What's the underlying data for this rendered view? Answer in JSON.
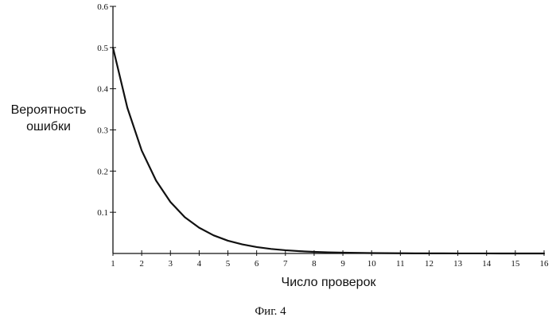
{
  "chart_data": {
    "type": "line",
    "title": "",
    "ylabel_line1": "Вероятность",
    "ylabel_line2": "ошибки",
    "xlabel": "Число проверок",
    "caption": "Фиг. 4",
    "xlim": [
      1,
      16
    ],
    "ylim": [
      0,
      0.6
    ],
    "x_ticks": [
      1,
      2,
      3,
      4,
      5,
      6,
      7,
      8,
      9,
      10,
      11,
      12,
      13,
      14,
      15,
      16
    ],
    "y_ticks": [
      0.1,
      0.2,
      0.3,
      0.4,
      0.5,
      0.6
    ],
    "grid": false,
    "series": [
      {
        "x": [
          1,
          1.5,
          2,
          2.5,
          3,
          3.5,
          4,
          4.5,
          5,
          5.5,
          6,
          6.5,
          7,
          7.5,
          8,
          8.5,
          9,
          9.5,
          10,
          10.5,
          11,
          11.5,
          12,
          12.5,
          13,
          13.5,
          14,
          14.5,
          15,
          15.5,
          16
        ],
        "y": [
          0.5,
          0.354,
          0.25,
          0.177,
          0.125,
          0.088,
          0.0625,
          0.044,
          0.031,
          0.022,
          0.0156,
          0.011,
          0.0078,
          0.0055,
          0.0039,
          0.0028,
          0.002,
          0.0014,
          0.001,
          0.0007,
          0.0005,
          0.0003,
          0.0002,
          0.0002,
          0.0001,
          0.0001,
          0.0001,
          0.0,
          0.0,
          0.0,
          0.0
        ]
      }
    ]
  }
}
